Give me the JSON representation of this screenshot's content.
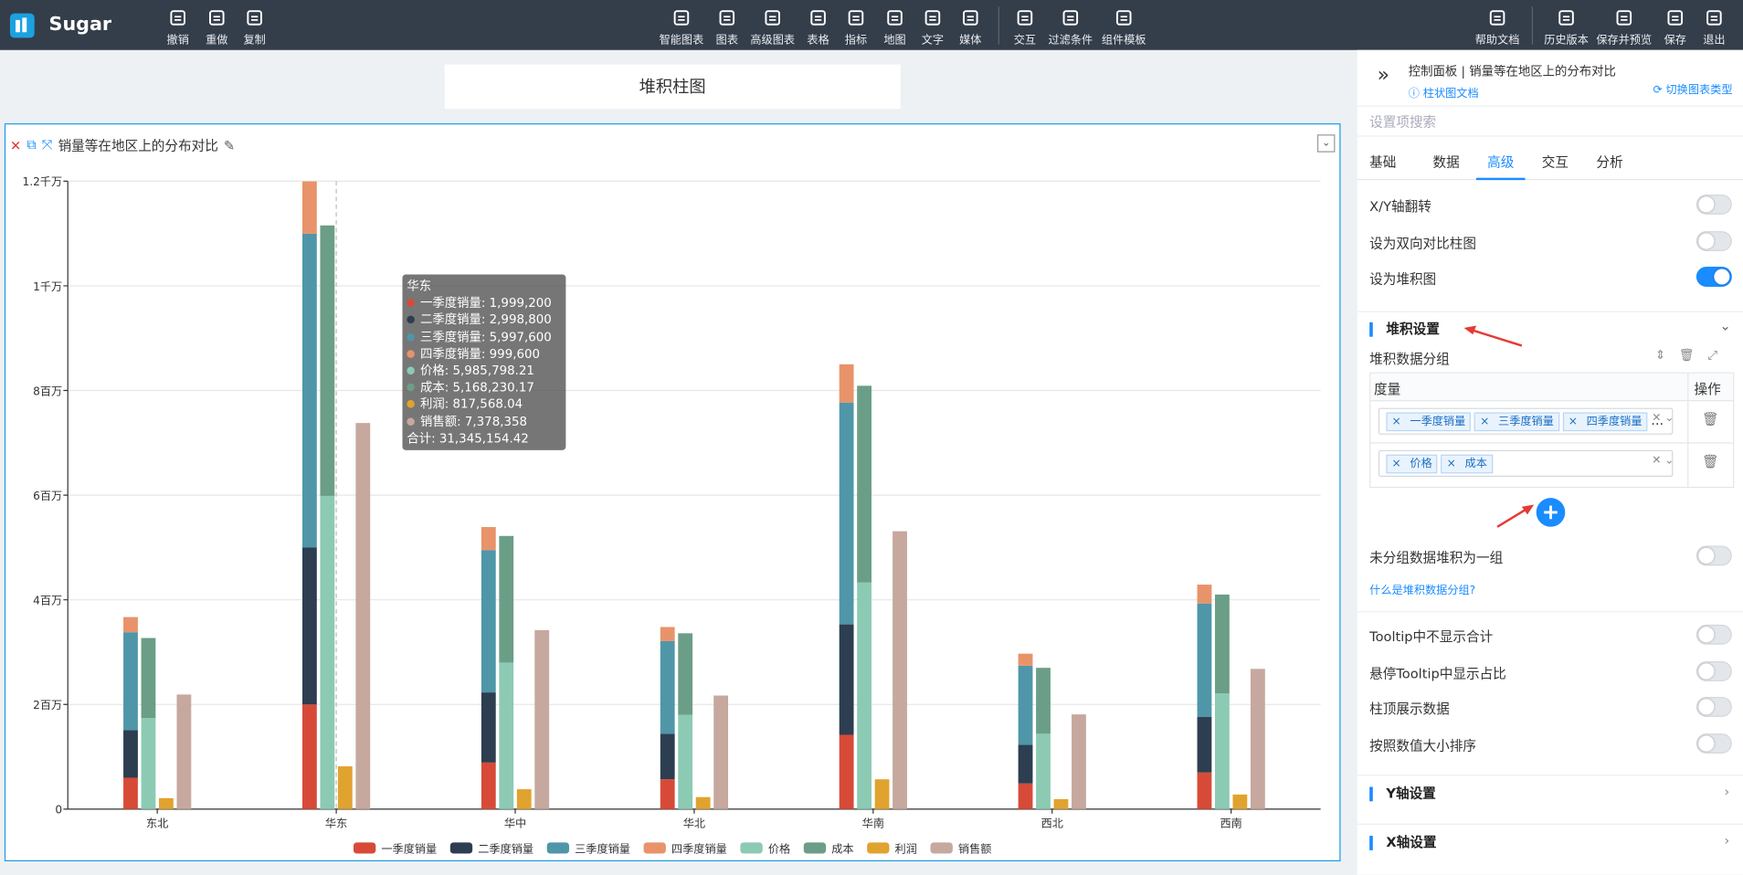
{
  "toolbar": {
    "brand": "Sugar",
    "edit": [
      "撤销",
      "重做",
      "复制"
    ],
    "insert": [
      "智能图表",
      "图表",
      "高级图表",
      "表格",
      "指标",
      "地图",
      "文字",
      "媒体"
    ],
    "extra": [
      "交互",
      "过滤条件",
      "组件模板"
    ],
    "help": "帮助文档",
    "actions": [
      "历史版本",
      "保存并预览",
      "保存",
      "退出"
    ]
  },
  "canvas": {
    "title": "堆积柱图"
  },
  "chart_data": {
    "type": "bar",
    "title": "销量等在地区上的分布对比",
    "categories": [
      "东北",
      "华东",
      "华中",
      "华北",
      "华南",
      "西北",
      "西南"
    ],
    "series": [
      {
        "name": "一季度销量",
        "color": "#d84a38",
        "values": [
          600000,
          1999200,
          890000,
          570000,
          1420000,
          490000,
          700000
        ]
      },
      {
        "name": "二季度销量",
        "color": "#2c3e50",
        "values": [
          910000,
          2998800,
          1340000,
          870000,
          2110000,
          740000,
          1060000
        ]
      },
      {
        "name": "三季度销量",
        "color": "#4f96a9",
        "values": [
          1870000,
          5997600,
          2720000,
          1770000,
          4240000,
          1510000,
          2170000
        ]
      },
      {
        "name": "四季度销量",
        "color": "#e8936a",
        "values": [
          290000,
          999600,
          440000,
          270000,
          730000,
          230000,
          360000
        ]
      },
      {
        "name": "价格",
        "color": "#8ccab4",
        "values": [
          1740000,
          5985798.21,
          2800000,
          1800000,
          4330000,
          1440000,
          2210000
        ]
      },
      {
        "name": "成本",
        "color": "#6b9e86",
        "values": [
          1530000,
          5168230.17,
          2420000,
          1560000,
          3760000,
          1260000,
          1890000
        ]
      },
      {
        "name": "利润",
        "color": "#e1a32f",
        "values": [
          210000,
          817568.04,
          380000,
          230000,
          570000,
          190000,
          280000
        ]
      },
      {
        "name": "销售额",
        "color": "#c6a89e",
        "values": [
          2190000,
          7378358,
          3420000,
          2170000,
          5310000,
          1810000,
          2680000
        ]
      }
    ],
    "stack_groups": [
      [
        0,
        1,
        2,
        3
      ],
      [
        4,
        5
      ],
      [
        6
      ],
      [
        7
      ]
    ],
    "ylim": [
      0,
      12000000
    ],
    "yticks": [
      0,
      {
        "value": 2000000,
        "label": "2百万"
      },
      {
        "value": 4000000,
        "label": "4百万"
      },
      {
        "value": 6000000,
        "label": "6百万"
      },
      {
        "value": 8000000,
        "label": "8百万"
      },
      {
        "value": 10000000,
        "label": "1千万"
      },
      {
        "value": 12000000,
        "label": "1.2千万"
      }
    ],
    "grid": true,
    "tooltip": {
      "title": "华东",
      "lines": [
        "一季度销量: 1,999,200",
        "二季度销量: 2,998,800",
        "三季度销量: 5,997,600",
        "四季度销量: 999,600",
        "价格: 5,985,798.21",
        "成本: 5,168,230.17",
        "利润: 817,568.04",
        "销售额: 7,378,358"
      ],
      "total": "合计: 31,345,154.42"
    }
  },
  "panel": {
    "breadcrumb": "控制面板 | 销量等在地区上的分布对比",
    "doc_link": "柱状图文档",
    "switch_type": "切换图表类型",
    "search_placeholder": "设置项搜索",
    "tabs": [
      "基础",
      "数据",
      "高级",
      "交互",
      "分析"
    ],
    "active_tab": 2,
    "toggles": [
      {
        "label": "X/Y轴翻转",
        "on": false
      },
      {
        "label": "设为双向对比柱图",
        "on": false
      },
      {
        "label": "设为堆积图",
        "on": true
      }
    ],
    "stack_section": "堆积设置",
    "stack_group_label": "堆积数据分组",
    "table_headers": [
      "度量",
      "操作"
    ],
    "groups": [
      [
        "一季度销量",
        "三季度销量",
        "四季度销量"
      ],
      [
        "价格",
        "成本"
      ]
    ],
    "more": "...",
    "ungrouped": {
      "label": "未分组数据堆积为一组",
      "on": false
    },
    "help_link": "什么是堆积数据分组?",
    "tooltip_toggles": [
      {
        "label": "Tooltip中不显示合计",
        "on": false
      },
      {
        "label": "悬停Tooltip中显示占比",
        "on": false
      },
      {
        "label": "柱顶展示数据",
        "on": false
      },
      {
        "label": "按照数值大小排序",
        "on": false
      }
    ],
    "sections": [
      "Y轴设置",
      "X轴设置"
    ]
  }
}
